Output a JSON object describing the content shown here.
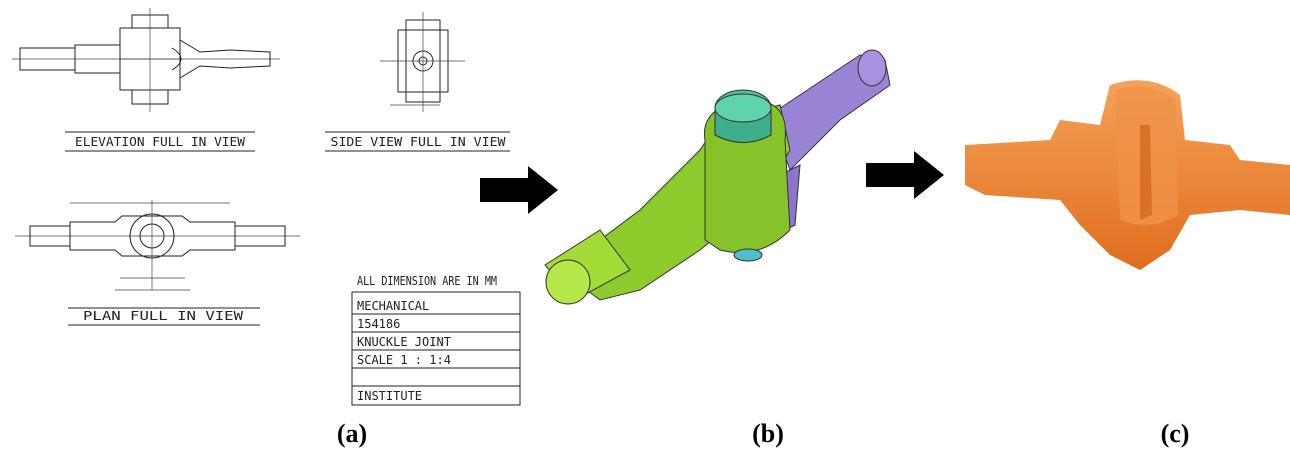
{
  "panels": [
    {
      "label": "(a)",
      "views": [
        "ELEVATION FULL IN VIEW",
        "SIDE VIEW FULL IN VIEW",
        "PLAN FULL IN VIEW"
      ],
      "title_block": [
        "ALL DIMENSION ARE IN MM",
        "MECHANICAL",
        "154186",
        "KNUCKLE JOINT",
        "SCALE 1 : 1:4",
        "INSTITUTE"
      ]
    },
    {
      "label": "(b)"
    },
    {
      "label": "(c)"
    }
  ]
}
